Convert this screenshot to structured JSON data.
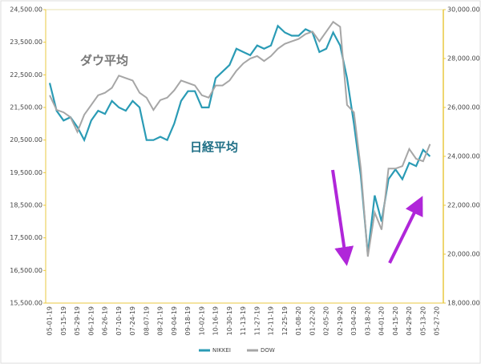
{
  "chart_data": {
    "type": "line",
    "categories": [
      "05-01-19",
      null,
      "05-15-19",
      null,
      "05-29-19",
      null,
      "06-12-19",
      null,
      "06-26-19",
      null,
      "07-10-19",
      null,
      "07-24-19",
      null,
      "08-07-19",
      null,
      "08-21-19",
      null,
      "09-04-19",
      null,
      "09-18-19",
      null,
      "10-02-19",
      null,
      "10-16-19",
      null,
      "10-30-19",
      null,
      "11-13-19",
      null,
      "11-27-19",
      null,
      "12-11-19",
      null,
      "12-25-19",
      null,
      "01-08-20",
      null,
      "01-22-20",
      null,
      "02-05-20",
      null,
      "02-19-20",
      null,
      "03-04-20",
      null,
      "03-18-20",
      null,
      "04-01-20",
      null,
      "04-15-20",
      null,
      "04-29-20",
      null,
      "05-13-20",
      null,
      "05-27-20"
    ],
    "series": [
      {
        "name": "NIKKEI",
        "color": "#2a9bb5",
        "values": [
          22250,
          21400,
          21100,
          21200,
          20900,
          20500,
          21100,
          21400,
          21300,
          21700,
          21500,
          21400,
          21700,
          21500,
          20500,
          20500,
          20600,
          20500,
          21000,
          21700,
          22000,
          22000,
          21500,
          21500,
          22400,
          22600,
          22800,
          23300,
          23200,
          23100,
          23400,
          23300,
          23400,
          24000,
          23800,
          23700,
          23700,
          23900,
          23800,
          23200,
          23300,
          23800,
          23400,
          22400,
          21000,
          19400,
          17000,
          18800,
          18000,
          19300,
          19600,
          19300,
          19800,
          19700,
          20200,
          20000,
          null
        ]
      },
      {
        "name": "DOW",
        "color": "#a6a6a6",
        "axis": "y2",
        "values": [
          26500,
          25900,
          25800,
          25600,
          25000,
          25700,
          26100,
          26500,
          26600,
          26800,
          27300,
          27200,
          27100,
          26600,
          26400,
          25900,
          26300,
          26400,
          26700,
          27100,
          27000,
          26900,
          26500,
          26400,
          26900,
          26900,
          27100,
          27500,
          27800,
          28000,
          28100,
          27900,
          28100,
          28400,
          28600,
          28700,
          28800,
          29000,
          29100,
          28700,
          29100,
          29500,
          29300,
          26100,
          25800,
          23500,
          19900,
          21700,
          21000,
          23500,
          23500,
          23600,
          24300,
          23900,
          23800,
          24500,
          null
        ]
      }
    ],
    "ylim": [
      15500,
      24500
    ],
    "yticks": [
      {
        "value": 15500,
        "label": "15,500.00"
      },
      {
        "value": 16500,
        "label": "16,500.00"
      },
      {
        "value": 17500,
        "label": "17,500.00"
      },
      {
        "value": 18500,
        "label": "18,500.00"
      },
      {
        "value": 19500,
        "label": "19,500.00"
      },
      {
        "value": 20500,
        "label": "20,500.00"
      },
      {
        "value": 21500,
        "label": "21,500.00"
      },
      {
        "value": 22500,
        "label": "22,500.00"
      },
      {
        "value": 23500,
        "label": "23,500.00"
      },
      {
        "value": 24500,
        "label": "24,500.00"
      }
    ],
    "y2lim": [
      18000,
      30000
    ],
    "y2ticks": [
      {
        "value": 18000,
        "label": "18,000.00"
      },
      {
        "value": 20000,
        "label": "20,000.00"
      },
      {
        "value": 22000,
        "label": "22,000.00"
      },
      {
        "value": 24000,
        "label": "24,000.00"
      },
      {
        "value": 26000,
        "label": "26,000.00"
      },
      {
        "value": 28000,
        "label": "28,000.00"
      },
      {
        "value": 30000,
        "label": "30,000.00"
      }
    ],
    "annotations": [
      "ダウ平均",
      "日経平均"
    ]
  }
}
